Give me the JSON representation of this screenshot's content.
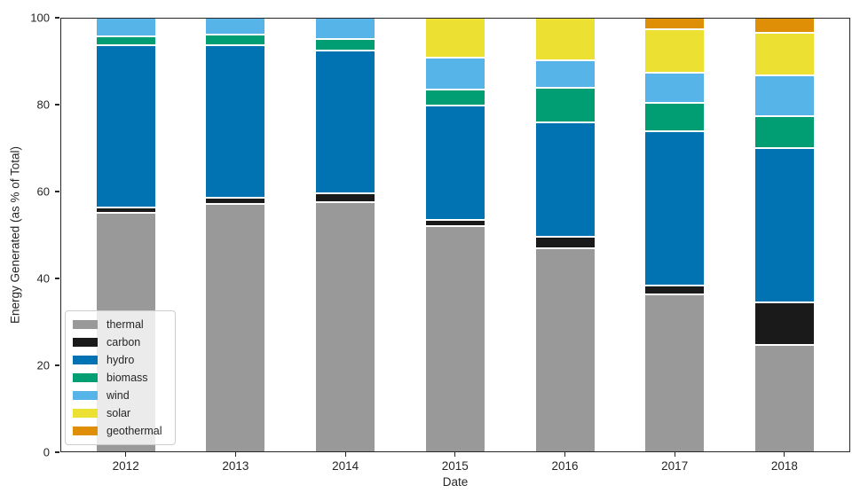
{
  "chart_data": {
    "type": "bar",
    "stacked": true,
    "title": "",
    "xlabel": "Date",
    "ylabel": "Energy Generated (as % of Total)",
    "categories": [
      "2012",
      "2013",
      "2014",
      "2015",
      "2016",
      "2017",
      "2018"
    ],
    "series": [
      {
        "name": "thermal",
        "color": "#999999",
        "values": [
          55.1,
          57.1,
          57.6,
          52.0,
          46.9,
          36.3,
          24.6
        ]
      },
      {
        "name": "carbon",
        "color": "#1a1a1a",
        "values": [
          1.3,
          1.5,
          1.9,
          1.5,
          2.7,
          2.1,
          9.9
        ]
      },
      {
        "name": "hydro",
        "color": "#0173b2",
        "values": [
          37.3,
          35.1,
          33.0,
          26.4,
          26.3,
          35.4,
          35.5
        ]
      },
      {
        "name": "biomass",
        "color": "#029e73",
        "values": [
          2.1,
          2.4,
          2.7,
          3.6,
          7.9,
          6.6,
          7.4
        ]
      },
      {
        "name": "wind",
        "color": "#56b4e9",
        "values": [
          4.2,
          3.9,
          4.8,
          7.3,
          6.5,
          7.0,
          9.3
        ]
      },
      {
        "name": "solar",
        "color": "#ece133",
        "values": [
          0,
          0,
          0,
          9.2,
          9.7,
          9.9,
          9.9
        ]
      },
      {
        "name": "geothermal",
        "color": "#de8f05",
        "values": [
          0,
          0,
          0,
          0,
          0,
          2.7,
          3.4
        ]
      }
    ],
    "ylim": [
      0,
      100
    ],
    "yticks": [
      0,
      20,
      40,
      60,
      80,
      100
    ],
    "grid": false,
    "legend_position": "lower left",
    "bar_edge_color": "#ffffff",
    "axis_color": "#262626",
    "background_color": "#ffffff"
  }
}
